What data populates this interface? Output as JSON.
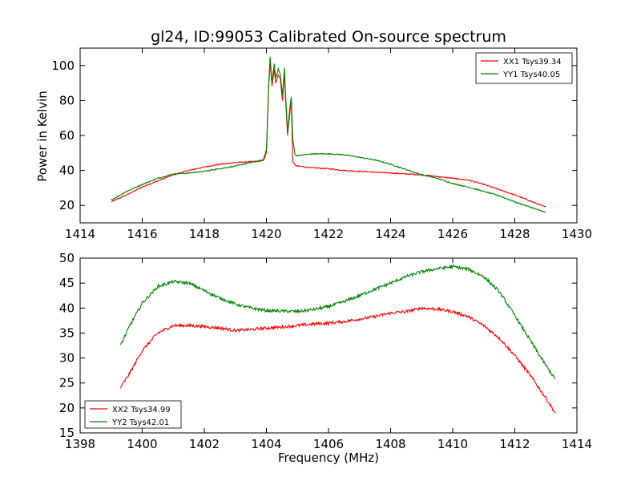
{
  "figure": {
    "title": "gl24, ID:99053 Calibrated On-source spectrum",
    "ylabel": "Power in Kelvin",
    "xlabel": "Frequency (MHz)"
  },
  "chart_data": [
    {
      "type": "line",
      "title": "gl24, ID:99053 Calibrated On-source spectrum",
      "xlabel": "",
      "ylabel": "Power in Kelvin",
      "xlim": [
        1414,
        1430
      ],
      "ylim": [
        10,
        110
      ],
      "xticks": [
        1414,
        1416,
        1418,
        1420,
        1422,
        1424,
        1426,
        1428,
        1430
      ],
      "yticks": [
        20,
        40,
        60,
        80,
        100
      ],
      "grid": false,
      "legend_position": "top-right",
      "series": [
        {
          "name": "XX1 Tsys39.34",
          "color": "#ff0000",
          "x": [
            1415.0,
            1415.5,
            1416.0,
            1416.5,
            1417.0,
            1417.5,
            1418.0,
            1418.5,
            1419.0,
            1419.5,
            1419.9,
            1420.0,
            1420.08,
            1420.12,
            1420.18,
            1420.25,
            1420.3,
            1420.38,
            1420.45,
            1420.52,
            1420.58,
            1420.62,
            1420.68,
            1420.75,
            1420.8,
            1420.85,
            1420.92,
            1421.0,
            1421.5,
            1422.0,
            1422.5,
            1423.0,
            1423.5,
            1424.0,
            1424.5,
            1425.0,
            1425.5,
            1426.0,
            1426.5,
            1427.0,
            1427.5,
            1428.0,
            1428.5,
            1429.0
          ],
          "values": [
            22,
            26,
            30.5,
            34,
            37.5,
            40,
            42,
            43.5,
            44.5,
            45,
            45.5,
            50,
            90,
            102,
            88,
            98,
            90,
            95,
            92,
            80,
            96,
            80,
            60,
            72,
            80,
            45,
            43,
            42.5,
            41.5,
            41,
            40,
            39.5,
            39,
            38.5,
            38,
            37.5,
            36.5,
            35.5,
            34.5,
            32,
            29,
            26,
            22.5,
            19
          ]
        },
        {
          "name": "YY1 Tsys40.05",
          "color": "#008000",
          "x": [
            1415.0,
            1415.5,
            1416.0,
            1416.5,
            1417.0,
            1417.5,
            1418.0,
            1418.5,
            1419.0,
            1419.5,
            1419.9,
            1420.0,
            1420.08,
            1420.12,
            1420.18,
            1420.25,
            1420.3,
            1420.38,
            1420.45,
            1420.52,
            1420.58,
            1420.62,
            1420.68,
            1420.75,
            1420.8,
            1420.85,
            1420.92,
            1421.0,
            1421.5,
            1422.0,
            1422.5,
            1423.0,
            1423.5,
            1424.0,
            1424.5,
            1425.0,
            1425.5,
            1426.0,
            1426.5,
            1427.0,
            1427.5,
            1428.0,
            1428.5,
            1429.0
          ],
          "values": [
            23,
            28,
            32,
            35.5,
            38,
            38.5,
            39.5,
            41,
            42.5,
            44.5,
            46,
            52,
            92,
            105,
            90,
            101,
            93,
            98,
            95,
            83,
            99,
            83,
            62,
            75,
            82,
            58,
            49,
            48.5,
            49.5,
            49.5,
            49,
            47.5,
            46,
            43.5,
            40.5,
            37.5,
            35.5,
            32.5,
            30.5,
            28,
            25.5,
            22,
            19,
            16
          ]
        }
      ]
    },
    {
      "type": "line",
      "title": "",
      "xlabel": "Frequency (MHz)",
      "ylabel": "",
      "xlim": [
        1398,
        1414
      ],
      "ylim": [
        15,
        50
      ],
      "xticks": [
        1398,
        1400,
        1402,
        1404,
        1406,
        1408,
        1410,
        1412,
        1414
      ],
      "yticks": [
        15,
        20,
        25,
        30,
        35,
        40,
        45,
        50
      ],
      "grid": false,
      "legend_position": "bottom-left",
      "series": [
        {
          "name": "XX2 Tsys34.99",
          "color": "#ff0000",
          "x": [
            1399.3,
            1399.6,
            1400.0,
            1400.5,
            1401.0,
            1401.5,
            1402.0,
            1402.5,
            1403.0,
            1403.5,
            1404.0,
            1404.5,
            1405.0,
            1405.5,
            1406.0,
            1406.5,
            1407.0,
            1407.5,
            1408.0,
            1408.5,
            1409.0,
            1409.5,
            1410.0,
            1410.5,
            1411.0,
            1411.5,
            1412.0,
            1412.5,
            1413.0,
            1413.3
          ],
          "values": [
            24,
            27,
            31.5,
            35,
            36.5,
            36.5,
            36.3,
            36,
            35.5,
            35.7,
            36,
            36.2,
            36.5,
            36.8,
            37,
            37.3,
            37.8,
            38.3,
            39,
            39.3,
            40,
            39.8,
            39.3,
            38.3,
            36.5,
            34,
            30.5,
            26.5,
            22,
            19
          ]
        },
        {
          "name": "YY2 Tsys42.01",
          "color": "#008000",
          "x": [
            1399.3,
            1399.6,
            1400.0,
            1400.5,
            1401.0,
            1401.5,
            1402.0,
            1402.5,
            1403.0,
            1403.5,
            1404.0,
            1404.5,
            1405.0,
            1405.5,
            1406.0,
            1406.5,
            1407.0,
            1407.5,
            1408.0,
            1408.5,
            1409.0,
            1409.5,
            1410.0,
            1410.5,
            1411.0,
            1411.5,
            1412.0,
            1412.5,
            1413.0,
            1413.3
          ],
          "values": [
            32.5,
            36.5,
            41,
            44.3,
            45.3,
            45,
            43.5,
            42,
            40.8,
            40,
            39.5,
            39.4,
            39.3,
            39.7,
            40.3,
            41.3,
            42.5,
            43.8,
            45,
            46.3,
            47.3,
            47.9,
            48.3,
            47.8,
            46.3,
            43.3,
            38.5,
            33.5,
            28.5,
            25.8
          ]
        }
      ]
    }
  ]
}
